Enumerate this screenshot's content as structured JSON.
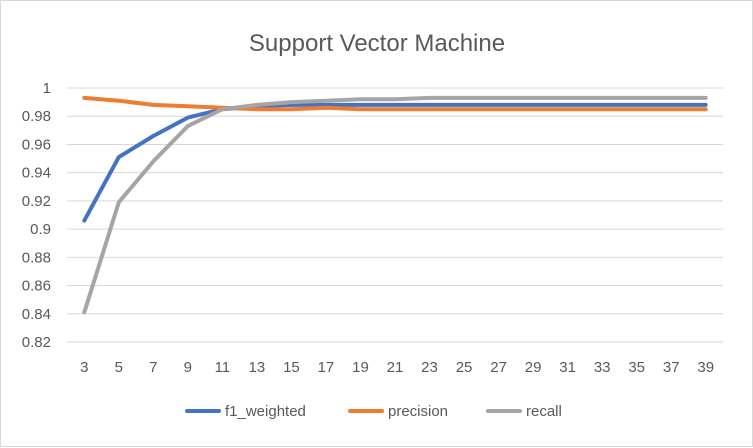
{
  "chart_data": {
    "type": "line",
    "title": "Support Vector Machine",
    "xlabel": "",
    "ylabel": "",
    "x": [
      3,
      5,
      7,
      9,
      11,
      13,
      15,
      17,
      19,
      21,
      23,
      25,
      27,
      29,
      31,
      33,
      35,
      37,
      39
    ],
    "ylim": [
      0.82,
      1.0
    ],
    "yticks": [
      0.82,
      0.84,
      0.86,
      0.88,
      0.9,
      0.92,
      0.94,
      0.96,
      0.98,
      1
    ],
    "ytick_labels": [
      "0.82",
      "0.84",
      "0.86",
      "0.88",
      "0.9",
      "0.92",
      "0.94",
      "0.96",
      "0.98",
      "1"
    ],
    "grid": true,
    "legend_position": "bottom",
    "series": [
      {
        "name": "f1_weighted",
        "color": "#4472c4",
        "values": [
          0.906,
          0.951,
          0.966,
          0.979,
          0.985,
          0.987,
          0.988,
          0.988,
          0.988,
          0.988,
          0.988,
          0.988,
          0.988,
          0.988,
          0.988,
          0.988,
          0.988,
          0.988,
          0.988
        ]
      },
      {
        "name": "precision",
        "color": "#ed7d31",
        "values": [
          0.993,
          0.991,
          0.988,
          0.987,
          0.986,
          0.985,
          0.985,
          0.986,
          0.985,
          0.985,
          0.985,
          0.985,
          0.985,
          0.985,
          0.985,
          0.985,
          0.985,
          0.985,
          0.985
        ]
      },
      {
        "name": "recall",
        "color": "#a5a5a5",
        "values": [
          0.841,
          0.919,
          0.948,
          0.973,
          0.985,
          0.988,
          0.99,
          0.991,
          0.992,
          0.992,
          0.993,
          0.993,
          0.993,
          0.993,
          0.993,
          0.993,
          0.993,
          0.993,
          0.993
        ]
      }
    ]
  }
}
